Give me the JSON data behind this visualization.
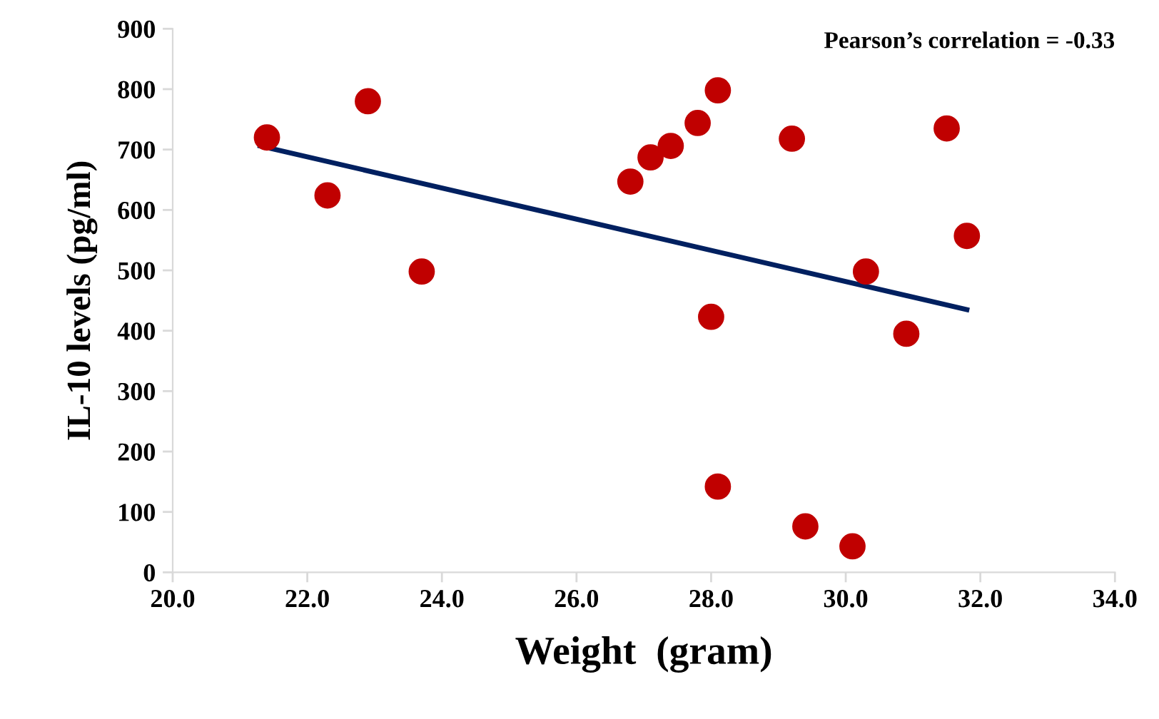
{
  "chart_data": {
    "type": "scatter",
    "xlabel": "Weight  (gram)",
    "ylabel": "IL-10 levels (pg/ml)",
    "annotations": [
      "Pearson’s correlation = -0.33"
    ],
    "xlim": [
      20.0,
      34.0
    ],
    "xticks": [
      {
        "value": 20,
        "label": "20.0"
      },
      {
        "value": 22,
        "label": "22.0"
      },
      {
        "value": 24,
        "label": "24.0"
      },
      {
        "value": 26,
        "label": "26.0"
      },
      {
        "value": 28,
        "label": "28.0"
      },
      {
        "value": 30,
        "label": "30.0"
      },
      {
        "value": 32,
        "label": "32.0"
      },
      {
        "value": 34,
        "label": "34.0"
      }
    ],
    "ylim": [
      0,
      900
    ],
    "yticks": [
      0,
      100,
      200,
      300,
      400,
      500,
      600,
      700,
      800,
      900
    ],
    "grid": false,
    "marker": "circle",
    "series": [
      {
        "color": "#c00000",
        "x": [
          21.4,
          22.3,
          22.9,
          23.7,
          26.8,
          27.1,
          27.4,
          27.8,
          28.1,
          28.0,
          28.1,
          29.2,
          29.4,
          30.1,
          30.3,
          30.9,
          31.5,
          31.8
        ],
        "values": [
          720,
          624,
          780,
          498,
          647,
          687,
          706,
          744,
          798,
          423,
          142,
          718,
          76,
          43,
          498,
          395,
          735,
          557
        ]
      },
      {
        "type": "line",
        "color": "#002060",
        "line_style": "solid",
        "marker": "none",
        "x": [
          21.3,
          31.8
        ],
        "values": [
          706,
          435
        ]
      }
    ]
  }
}
